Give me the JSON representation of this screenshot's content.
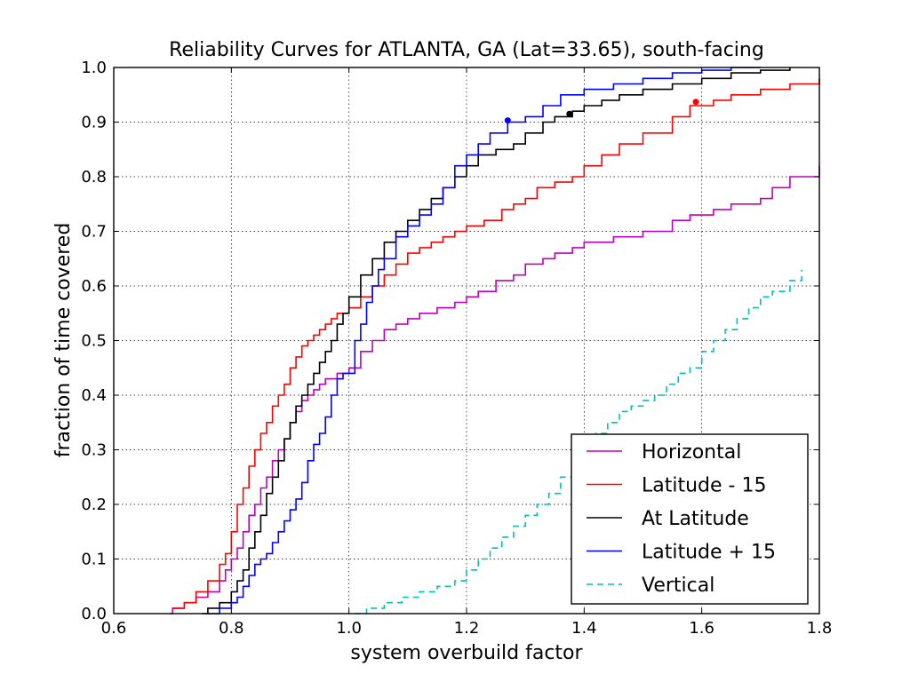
{
  "chart_data": {
    "type": "line",
    "title": "Reliability Curves for ATLANTA, GA (Lat=33.65), south-facing",
    "xlabel": "system overbuild factor",
    "ylabel": "fraction of time covered",
    "xlim": [
      0.6,
      1.8
    ],
    "ylim": [
      0.0,
      1.0
    ],
    "xticks": [
      0.6,
      0.8,
      1.0,
      1.2,
      1.4,
      1.6,
      1.8
    ],
    "xtick_labels": [
      "0.6",
      "0.8",
      "1.0",
      "1.2",
      "1.4",
      "1.6",
      "1.8"
    ],
    "yticks": [
      0.0,
      0.1,
      0.2,
      0.3,
      0.4,
      0.5,
      0.6,
      0.7,
      0.8,
      0.9,
      1.0
    ],
    "ytick_labels": [
      "0.0",
      "0.1",
      "0.2",
      "0.3",
      "0.4",
      "0.5",
      "0.6",
      "0.7",
      "0.8",
      "0.9",
      "1.0"
    ],
    "grid": true,
    "legend_position": "lower-right",
    "series": [
      {
        "name": "Horizontal",
        "color": "#bf00bf",
        "dashed": false,
        "x": [
          0.695,
          0.7,
          0.72,
          0.74,
          0.76,
          0.78,
          0.79,
          0.8,
          0.81,
          0.82,
          0.83,
          0.84,
          0.85,
          0.86,
          0.87,
          0.88,
          0.89,
          0.9,
          0.91,
          0.92,
          0.93,
          0.94,
          0.95,
          0.96,
          0.97,
          0.98,
          0.99,
          1.0,
          1.02,
          1.04,
          1.06,
          1.08,
          1.1,
          1.12,
          1.15,
          1.18,
          1.2,
          1.22,
          1.25,
          1.28,
          1.3,
          1.33,
          1.35,
          1.38,
          1.4,
          1.45,
          1.5,
          1.55,
          1.58,
          1.62,
          1.65,
          1.7,
          1.72,
          1.75,
          1.8
        ],
        "y": [
          0.0,
          0.01,
          0.02,
          0.03,
          0.04,
          0.06,
          0.08,
          0.1,
          0.12,
          0.15,
          0.18,
          0.2,
          0.23,
          0.25,
          0.28,
          0.3,
          0.32,
          0.35,
          0.37,
          0.39,
          0.4,
          0.41,
          0.42,
          0.43,
          0.43,
          0.44,
          0.44,
          0.45,
          0.48,
          0.5,
          0.52,
          0.53,
          0.54,
          0.55,
          0.56,
          0.57,
          0.58,
          0.59,
          0.61,
          0.62,
          0.64,
          0.65,
          0.66,
          0.67,
          0.68,
          0.69,
          0.7,
          0.72,
          0.73,
          0.74,
          0.75,
          0.76,
          0.78,
          0.8,
          0.82
        ]
      },
      {
        "name": "Latitude - 15",
        "color": "#ff0000",
        "dashed": false,
        "x": [
          0.7,
          0.72,
          0.74,
          0.76,
          0.78,
          0.79,
          0.8,
          0.81,
          0.82,
          0.83,
          0.84,
          0.85,
          0.86,
          0.87,
          0.88,
          0.89,
          0.9,
          0.91,
          0.92,
          0.93,
          0.94,
          0.95,
          0.96,
          0.97,
          0.98,
          0.99,
          1.0,
          1.02,
          1.04,
          1.06,
          1.08,
          1.1,
          1.12,
          1.14,
          1.16,
          1.18,
          1.2,
          1.23,
          1.26,
          1.28,
          1.3,
          1.32,
          1.35,
          1.38,
          1.4,
          1.43,
          1.46,
          1.5,
          1.55,
          1.58,
          1.62,
          1.65,
          1.7,
          1.75,
          1.8
        ],
        "y": [
          0.01,
          0.02,
          0.04,
          0.06,
          0.09,
          0.11,
          0.15,
          0.2,
          0.23,
          0.27,
          0.3,
          0.33,
          0.35,
          0.38,
          0.4,
          0.42,
          0.45,
          0.47,
          0.49,
          0.5,
          0.51,
          0.52,
          0.53,
          0.54,
          0.55,
          0.55,
          0.56,
          0.58,
          0.6,
          0.62,
          0.64,
          0.66,
          0.67,
          0.68,
          0.69,
          0.7,
          0.71,
          0.72,
          0.74,
          0.75,
          0.76,
          0.78,
          0.79,
          0.8,
          0.82,
          0.84,
          0.86,
          0.88,
          0.91,
          0.93,
          0.94,
          0.95,
          0.96,
          0.97,
          0.98
        ]
      },
      {
        "name": "At Latitude",
        "color": "#000000",
        "dashed": false,
        "x": [
          0.75,
          0.76,
          0.78,
          0.8,
          0.81,
          0.82,
          0.83,
          0.84,
          0.85,
          0.86,
          0.87,
          0.88,
          0.89,
          0.9,
          0.91,
          0.92,
          0.93,
          0.94,
          0.95,
          0.96,
          0.97,
          0.98,
          0.99,
          1.0,
          1.02,
          1.04,
          1.06,
          1.08,
          1.1,
          1.12,
          1.14,
          1.16,
          1.18,
          1.2,
          1.22,
          1.25,
          1.28,
          1.3,
          1.33,
          1.35,
          1.38,
          1.4,
          1.43,
          1.46,
          1.5,
          1.55,
          1.6,
          1.65,
          1.7,
          1.75
        ],
        "y": [
          0.0,
          0.01,
          0.02,
          0.04,
          0.06,
          0.08,
          0.12,
          0.15,
          0.18,
          0.22,
          0.25,
          0.28,
          0.32,
          0.35,
          0.38,
          0.4,
          0.42,
          0.44,
          0.46,
          0.48,
          0.5,
          0.53,
          0.55,
          0.58,
          0.62,
          0.65,
          0.68,
          0.7,
          0.72,
          0.74,
          0.76,
          0.78,
          0.8,
          0.82,
          0.84,
          0.85,
          0.86,
          0.88,
          0.9,
          0.91,
          0.92,
          0.93,
          0.94,
          0.95,
          0.96,
          0.97,
          0.98,
          0.99,
          0.995,
          1.0
        ]
      },
      {
        "name": "Latitude + 15",
        "color": "#0000ff",
        "dashed": false,
        "x": [
          0.76,
          0.78,
          0.8,
          0.81,
          0.82,
          0.83,
          0.84,
          0.85,
          0.86,
          0.87,
          0.88,
          0.89,
          0.9,
          0.91,
          0.92,
          0.93,
          0.94,
          0.95,
          0.96,
          0.97,
          0.98,
          0.99,
          1.0,
          1.01,
          1.02,
          1.03,
          1.04,
          1.05,
          1.06,
          1.08,
          1.1,
          1.12,
          1.14,
          1.16,
          1.18,
          1.2,
          1.22,
          1.24,
          1.27,
          1.3,
          1.33,
          1.36,
          1.4,
          1.45,
          1.5,
          1.55,
          1.6,
          1.65,
          1.7
        ],
        "y": [
          0.0,
          0.01,
          0.02,
          0.03,
          0.05,
          0.07,
          0.09,
          0.1,
          0.11,
          0.13,
          0.15,
          0.17,
          0.19,
          0.21,
          0.24,
          0.28,
          0.31,
          0.33,
          0.36,
          0.4,
          0.43,
          0.44,
          0.44,
          0.5,
          0.53,
          0.57,
          0.6,
          0.63,
          0.65,
          0.69,
          0.71,
          0.73,
          0.75,
          0.78,
          0.82,
          0.84,
          0.86,
          0.88,
          0.9,
          0.91,
          0.93,
          0.95,
          0.96,
          0.97,
          0.98,
          0.99,
          0.995,
          1.0,
          1.0
        ]
      },
      {
        "name": "Vertical",
        "color": "#00bfbf",
        "dashed": true,
        "x": [
          1.01,
          1.03,
          1.06,
          1.09,
          1.12,
          1.15,
          1.18,
          1.2,
          1.22,
          1.24,
          1.26,
          1.28,
          1.3,
          1.32,
          1.34,
          1.36,
          1.38,
          1.4,
          1.42,
          1.44,
          1.46,
          1.48,
          1.5,
          1.52,
          1.54,
          1.56,
          1.58,
          1.6,
          1.62,
          1.64,
          1.66,
          1.68,
          1.7,
          1.72,
          1.75,
          1.77
        ],
        "y": [
          0.0,
          0.01,
          0.02,
          0.03,
          0.04,
          0.05,
          0.06,
          0.08,
          0.1,
          0.12,
          0.14,
          0.16,
          0.18,
          0.2,
          0.22,
          0.25,
          0.28,
          0.31,
          0.33,
          0.35,
          0.37,
          0.38,
          0.39,
          0.4,
          0.42,
          0.44,
          0.45,
          0.48,
          0.5,
          0.52,
          0.54,
          0.56,
          0.58,
          0.59,
          0.61,
          0.63
        ]
      }
    ],
    "markers": [
      {
        "x": 1.27,
        "y": 0.903,
        "color": "#0000ff"
      },
      {
        "x": 1.375,
        "y": 0.915,
        "color": "#000000"
      },
      {
        "x": 1.59,
        "y": 0.937,
        "color": "#ff0000"
      }
    ]
  }
}
